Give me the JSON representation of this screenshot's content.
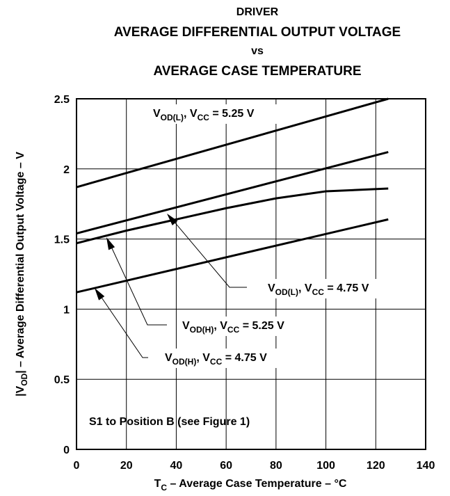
{
  "chart_data": {
    "type": "line",
    "title": [
      "DRIVER",
      "AVERAGE DIFFERENTIAL OUTPUT VOLTAGE",
      "vs",
      "AVERAGE CASE TEMPERATURE"
    ],
    "xlabel": [
      "T",
      "C",
      " – Average Case Temperature – °C"
    ],
    "ylabel": [
      "|V",
      "OD",
      "|  – Average Differential Output Voltage – V"
    ],
    "annotation": "S1 to Position B (see Figure 1)",
    "xlim": [
      0,
      140
    ],
    "ylim": [
      0,
      2.5
    ],
    "xticks": [
      0,
      20,
      40,
      60,
      80,
      100,
      120,
      140
    ],
    "yticks": [
      0,
      0.5,
      1,
      1.5,
      2,
      2.5
    ],
    "grid": true,
    "series": [
      {
        "name": [
          "V",
          "OD(L)",
          ", V",
          "CC",
          " = 5.25 V"
        ],
        "color": "#000000",
        "x": [
          0,
          125
        ],
        "values": [
          1.87,
          2.5
        ]
      },
      {
        "name": [
          "V",
          "OD(L)",
          ", V",
          "CC",
          " = 4.75 V"
        ],
        "color": "#000000",
        "x": [
          0,
          125
        ],
        "values": [
          1.54,
          2.12
        ]
      },
      {
        "name": [
          "V",
          "OD(H)",
          ", V",
          "CC",
          " = 5.25 V"
        ],
        "color": "#000000",
        "x": [
          0,
          20,
          40,
          60,
          80,
          100,
          125
        ],
        "values": [
          1.47,
          1.56,
          1.64,
          1.72,
          1.79,
          1.84,
          1.86
        ]
      },
      {
        "name": [
          "V",
          "OD(H)",
          ", V",
          "CC",
          " = 4.75 V"
        ],
        "color": "#000000",
        "x": [
          0,
          125
        ],
        "values": [
          1.12,
          1.64
        ]
      }
    ]
  }
}
